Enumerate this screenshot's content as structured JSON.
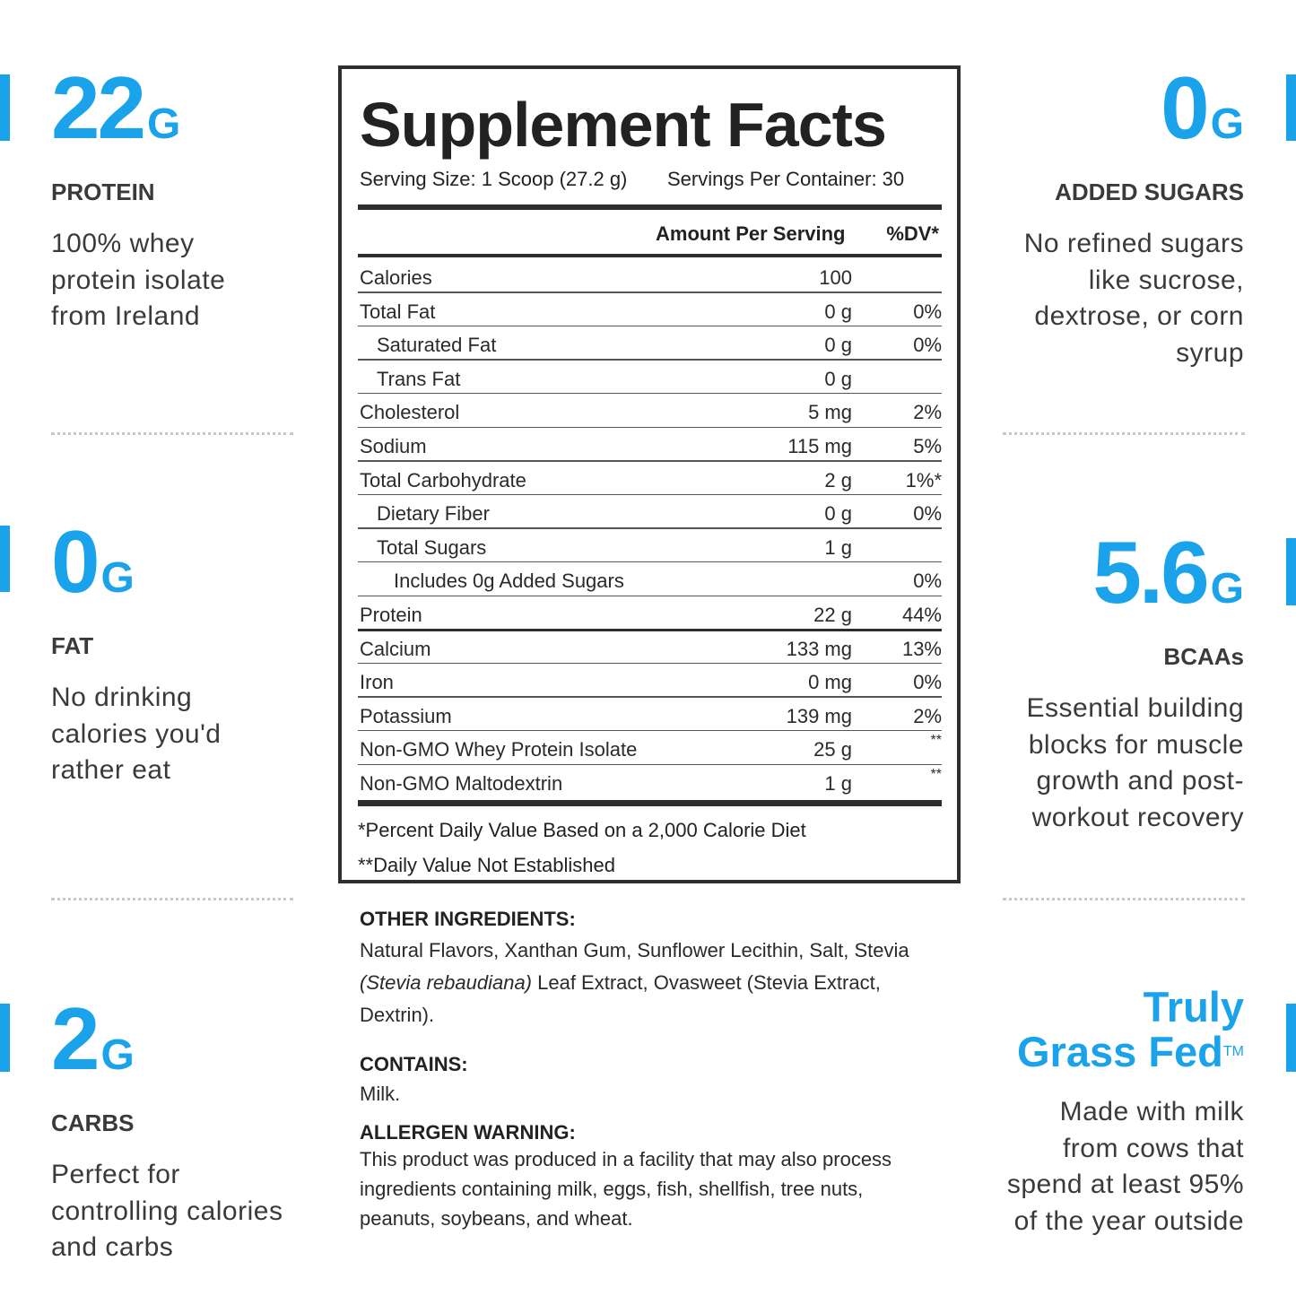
{
  "left": [
    {
      "big": "22",
      "unit": "G",
      "label": "PROTEIN",
      "text": [
        "100% whey",
        "protein isolate",
        "from Ireland"
      ]
    },
    {
      "big": "0",
      "unit": "G",
      "label": "FAT",
      "text": [
        "No drinking",
        "calories you'd",
        "rather eat"
      ]
    },
    {
      "big": "2",
      "unit": "G",
      "label": "CARBS",
      "text": [
        "Perfect for",
        "controlling calories",
        "and carbs"
      ]
    }
  ],
  "right": [
    {
      "big": "0",
      "unit": "G",
      "label": "ADDED SUGARS",
      "text": [
        "No refined sugars",
        "like sucrose,",
        "dextrose, or corn",
        "syrup"
      ]
    },
    {
      "big": "5.6",
      "unit": "G",
      "label": "BCAAs",
      "text": [
        "Essential building",
        "blocks for muscle",
        "growth and post-",
        "workout recovery"
      ]
    },
    {
      "title": [
        "Truly",
        "Grass Fed"
      ],
      "tm": "TM",
      "text": [
        "Made with milk",
        "from cows that",
        "spend at least 95%",
        "of the year outside"
      ]
    }
  ],
  "facts": {
    "title": "Supplement Facts",
    "serving_size": "Serving Size: 1 Scoop (27.2 g)",
    "servings": "Servings Per Container: 30",
    "header_amount": "Amount Per Serving",
    "header_dv": "%DV*",
    "sections": [
      [
        {
          "name": "Calories",
          "amount": "100",
          "dv": null,
          "indent": 0
        },
        {
          "name": "Total Fat",
          "amount": "0 g",
          "dv": "0%",
          "indent": 0
        },
        {
          "name": "Saturated Fat",
          "amount": "0 g",
          "dv": "0%",
          "indent": 1
        },
        {
          "name": "Trans Fat",
          "amount": "0 g",
          "dv": null,
          "indent": 1
        },
        {
          "name": "Cholesterol",
          "amount": "5 mg",
          "dv": "2%",
          "indent": 0
        },
        {
          "name": "Sodium",
          "amount": "115 mg",
          "dv": "5%",
          "indent": 0
        },
        {
          "name": "Total Carbohydrate",
          "amount": "2 g",
          "dv": "1%*",
          "indent": 0
        },
        {
          "name": "Dietary Fiber",
          "amount": "0 g",
          "dv": "0%",
          "indent": 1
        },
        {
          "name": "Total Sugars",
          "amount": "1 g",
          "dv": null,
          "indent": 1
        },
        {
          "name": "Includes 0g Added Sugars",
          "amount": null,
          "dv": "0%",
          "indent": 2
        },
        {
          "name": "Protein",
          "amount": "22 g",
          "dv": "44%",
          "indent": 0
        }
      ],
      [
        {
          "name": "Calcium",
          "amount": "133 mg",
          "dv": "13%",
          "indent": 0
        },
        {
          "name": "Iron",
          "amount": "0 mg",
          "dv": "0%",
          "indent": 0
        },
        {
          "name": "Potassium",
          "amount": "139 mg",
          "dv": "2%",
          "indent": 0
        },
        {
          "name": "Non-GMO Whey Protein Isolate",
          "amount": "25 g",
          "dv": "**",
          "indent": 0
        },
        {
          "name": "Non-GMO Maltodextrin",
          "amount": "1 g",
          "dv": "**",
          "indent": 0
        }
      ]
    ],
    "footnotes": [
      "*Percent Daily Value Based on a 2,000 Calorie Diet",
      "**Daily Value Not Established"
    ]
  },
  "ingredients": {
    "heading": "OTHER INGREDIENTS:",
    "parts": [
      "Natural Flavors, Xanthan Gum, Sunflower Lecithin, Salt, Stevia ",
      "(Stevia rebaudiana)",
      " Leaf Extract, Ovasweet (Stevia Extract, Dextrin)."
    ]
  },
  "contains": {
    "heading": "CONTAINS:",
    "text": "Milk."
  },
  "allergen": {
    "heading": "ALLERGEN WARNING:",
    "text": "This product was produced in a facility that may also process ingredients containing milk, eggs, fish, shellfish, tree nuts, peanuts, soybeans, and wheat."
  }
}
